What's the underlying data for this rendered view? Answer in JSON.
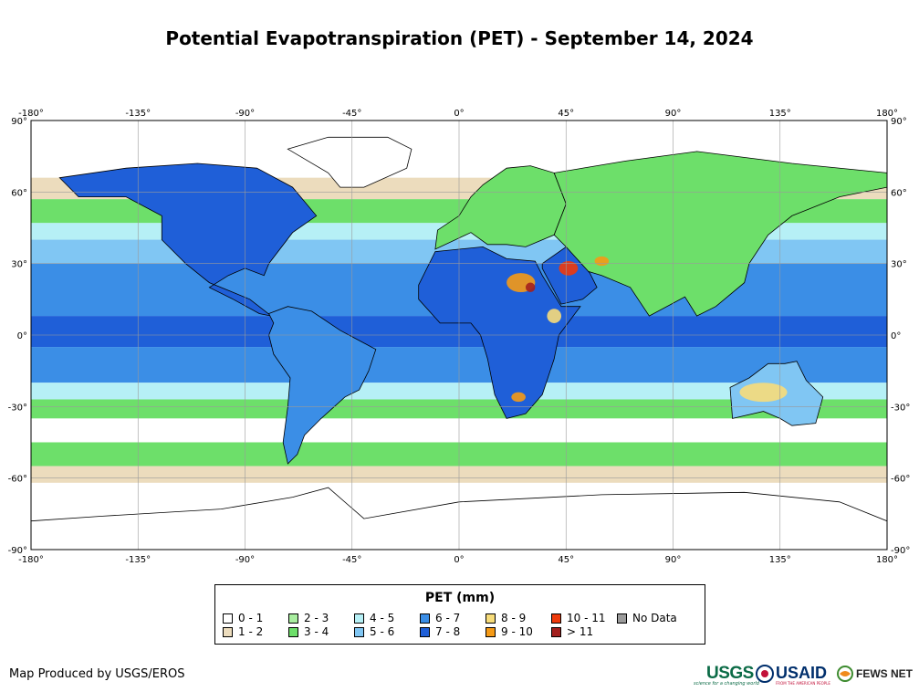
{
  "title": "Potential Evapotranspiration (PET) - September 14, 2024",
  "map": {
    "lon_ticks": [
      "-180°",
      "-135°",
      "-90°",
      "-45°",
      "0°",
      "45°",
      "90°",
      "135°",
      "180°"
    ],
    "lat_ticks": [
      "90°",
      "60°",
      "30°",
      "0°",
      "-30°",
      "-60°",
      "-90°"
    ],
    "extent": {
      "lon": [
        -180,
        180
      ],
      "lat": [
        -90,
        90
      ]
    },
    "grid": true,
    "colors": {
      "ocean_base": "#2d6fe0",
      "land_outline": "#000000"
    }
  },
  "legend": {
    "title": "PET (mm)",
    "classes": [
      {
        "label": "0 - 1",
        "color": "#ffffff"
      },
      {
        "label": "1 - 2",
        "color": "#ecdcbd"
      },
      {
        "label": "2 - 3",
        "color": "#a9eea0"
      },
      {
        "label": "3 - 4",
        "color": "#6ddf6a"
      },
      {
        "label": "4 - 5",
        "color": "#b6f0f6"
      },
      {
        "label": "5 - 6",
        "color": "#80c6f3"
      },
      {
        "label": "6 - 7",
        "color": "#3b8ee6"
      },
      {
        "label": "7 - 8",
        "color": "#1f5fd8"
      },
      {
        "label": "8 - 9",
        "color": "#f7dc7a"
      },
      {
        "label": "9 - 10",
        "color": "#f59a16"
      },
      {
        "label": "10 - 11",
        "color": "#ee3a0c"
      },
      {
        "label": "> 11",
        "color": "#a3201e"
      },
      {
        "label": "No Data",
        "color": "#9b9b9b"
      }
    ]
  },
  "footer": {
    "credit": "Map Produced by USGS/EROS",
    "logos": {
      "usgs": "USGS",
      "usgs_tagline": "science for a changing world",
      "usaid": "USAID",
      "usaid_tagline": "FROM THE AMERICAN PEOPLE",
      "fews": "FEWS NET"
    }
  }
}
